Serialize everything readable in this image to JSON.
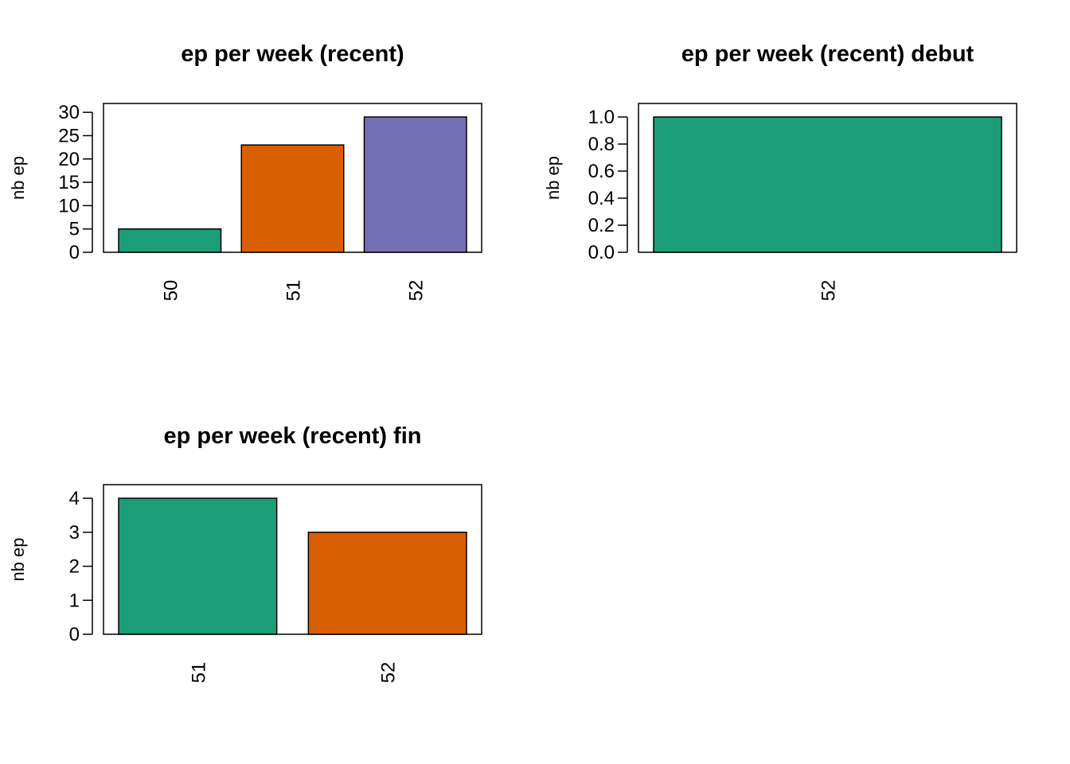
{
  "chart_data": [
    {
      "type": "bar",
      "title": "ep per week (recent)",
      "xlabel": "",
      "ylabel": "nb ep",
      "categories": [
        "50",
        "51",
        "52"
      ],
      "values": [
        5,
        23,
        29
      ],
      "colors": [
        "#1b9e77",
        "#d95f02",
        "#7570b3"
      ],
      "yticks": [
        "0",
        "5",
        "10",
        "15",
        "20",
        "25",
        "30"
      ],
      "ylim": [
        0,
        31.9
      ]
    },
    {
      "type": "bar",
      "title": "ep per week (recent) debut",
      "xlabel": "",
      "ylabel": "nb ep",
      "categories": [
        "52"
      ],
      "values": [
        1
      ],
      "colors": [
        "#1b9e77"
      ],
      "yticks": [
        "0.0",
        "0.2",
        "0.4",
        "0.6",
        "0.8",
        "1.0"
      ],
      "ylim": [
        0,
        1.1
      ]
    },
    {
      "type": "bar",
      "title": "ep per week (recent) fin",
      "xlabel": "",
      "ylabel": "nb ep",
      "categories": [
        "51",
        "52"
      ],
      "values": [
        4,
        3
      ],
      "colors": [
        "#1b9e77",
        "#d95f02"
      ],
      "yticks": [
        "0",
        "1",
        "2",
        "3",
        "4"
      ],
      "ylim": [
        0,
        4.4
      ]
    }
  ]
}
